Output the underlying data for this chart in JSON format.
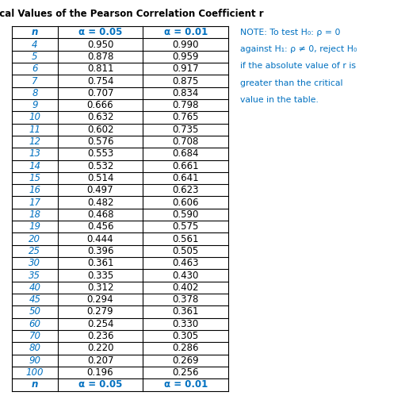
{
  "title": "Critical Values of the Pearson Correlation Coefficient r",
  "col_headers": [
    "n",
    "α = 0.05",
    "α = 0.01"
  ],
  "rows": [
    [
      "4",
      "0.950",
      "0.990"
    ],
    [
      "5",
      "0.878",
      "0.959"
    ],
    [
      "6",
      "0.811",
      "0.917"
    ],
    [
      "7",
      "0.754",
      "0.875"
    ],
    [
      "8",
      "0.707",
      "0.834"
    ],
    [
      "9",
      "0.666",
      "0.798"
    ],
    [
      "10",
      "0.632",
      "0.765"
    ],
    [
      "11",
      "0.602",
      "0.735"
    ],
    [
      "12",
      "0.576",
      "0.708"
    ],
    [
      "13",
      "0.553",
      "0.684"
    ],
    [
      "14",
      "0.532",
      "0.661"
    ],
    [
      "15",
      "0.514",
      "0.641"
    ],
    [
      "16",
      "0.497",
      "0.623"
    ],
    [
      "17",
      "0.482",
      "0.606"
    ],
    [
      "18",
      "0.468",
      "0.590"
    ],
    [
      "19",
      "0.456",
      "0.575"
    ],
    [
      "20",
      "0.444",
      "0.561"
    ],
    [
      "25",
      "0.396",
      "0.505"
    ],
    [
      "30",
      "0.361",
      "0.463"
    ],
    [
      "35",
      "0.335",
      "0.430"
    ],
    [
      "40",
      "0.312",
      "0.402"
    ],
    [
      "45",
      "0.294",
      "0.378"
    ],
    [
      "50",
      "0.279",
      "0.361"
    ],
    [
      "60",
      "0.254",
      "0.330"
    ],
    [
      "70",
      "0.236",
      "0.305"
    ],
    [
      "80",
      "0.220",
      "0.286"
    ],
    [
      "90",
      "0.207",
      "0.269"
    ],
    [
      "100",
      "0.196",
      "0.256"
    ]
  ],
  "footer": [
    "n",
    "α = 0.05",
    "α = 0.01"
  ],
  "note_lines": [
    "NOTE: To test H₀: ρ = 0",
    "against H₁: ρ ≠ 0, reject H₀",
    "if the absolute value of r is",
    "greater than the critical",
    "value in the table."
  ],
  "header_color": "#0070C0",
  "data_color": "#000000",
  "title_color": "#000000",
  "note_color": "#0070C0",
  "bg_color": "#ffffff",
  "border_color": "#000000",
  "title_fontsize": 8.5,
  "header_fontsize": 8.5,
  "data_fontsize": 8.5,
  "note_fontsize": 7.8
}
